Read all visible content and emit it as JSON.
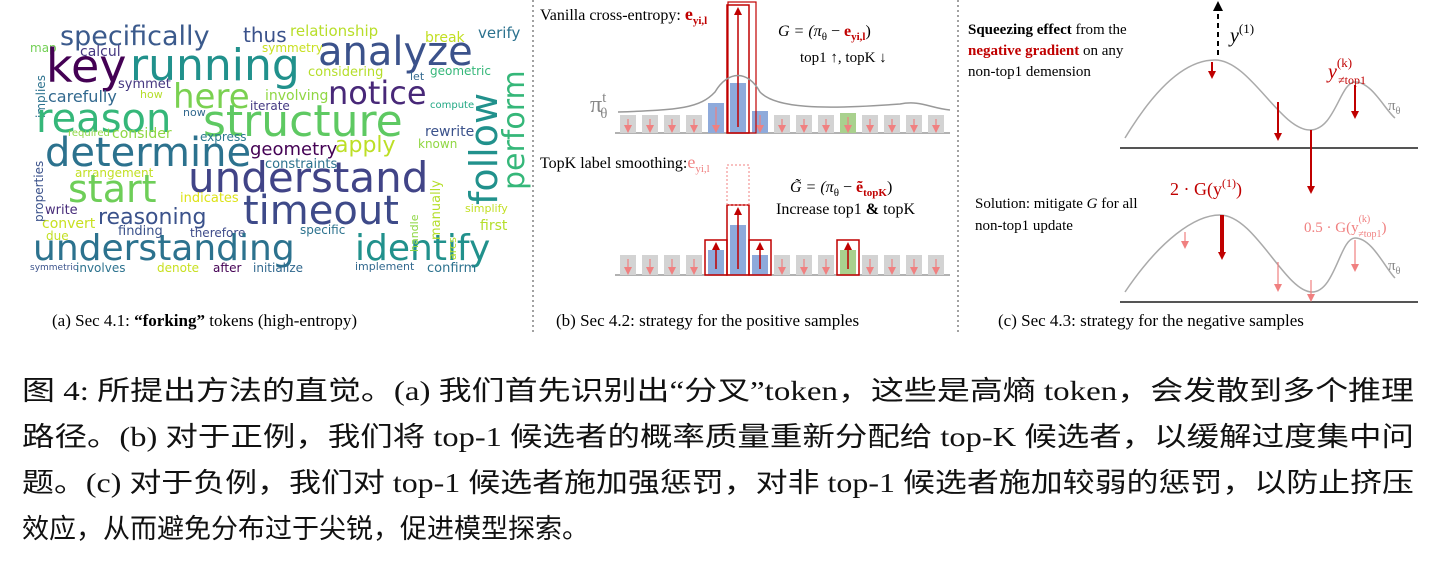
{
  "wordcloud": {
    "words": [
      "specifically",
      "thus",
      "relationship",
      "break",
      "verify",
      "map",
      "calcul",
      "symmetry",
      "key",
      "running",
      "analyze",
      "considering",
      "symmet",
      "let",
      "geometric",
      "carefully",
      "how",
      "involving",
      "here",
      "notice",
      "implies",
      "reason",
      "now",
      "iterate",
      "compute",
      "structure",
      "required",
      "consider",
      "express",
      "rewrite",
      "determine",
      "geometry",
      "apply",
      "known",
      "constraints",
      "properties",
      "understand",
      "arrangement",
      "start",
      "indicates",
      "write",
      "reasoning",
      "timeout",
      "convert",
      "specific",
      "simplify",
      "first",
      "due",
      "finding",
      "therefore",
      "understanding",
      "identify",
      "symmetric",
      "involves",
      "denote",
      "after",
      "initialize",
      "implement",
      "confirm",
      "follow",
      "perform",
      "manually",
      "handle",
      "arcs"
    ]
  },
  "panel_a": {
    "caption": [
      "(a) Sec 4.1:  ",
      "“forking”",
      " tokens (high-entropy)"
    ]
  },
  "panel_b": {
    "vanilla_label": [
      "Vanilla cross-entropy: ",
      "e",
      "yi,l"
    ],
    "formula_g": [
      "G = (π",
      "θ",
      " − ",
      "e",
      "yi,l",
      ")"
    ],
    "effect_top": "top1 ↑, topK ↓",
    "policy_label": [
      "π",
      "t",
      "θ"
    ],
    "smoothing_label": [
      "TopK label smoothing:",
      "e",
      "yi,l"
    ],
    "formula_g_tilde": [
      "G̃ = (π",
      "θ",
      " − ",
      "ẽ",
      "topK",
      ")"
    ],
    "effect_bottom": [
      "Increase top1 ",
      "&",
      " topK"
    ],
    "caption": "(b) Sec 4.2: strategy for the positive samples"
  },
  "panel_c": {
    "squeeze_line1": [
      "Squeezing effect",
      " from the"
    ],
    "squeeze_line2": [
      "negative gradient",
      " on any"
    ],
    "squeeze_line3": "non-top1 demension",
    "y_top1": [
      "y",
      "(1)"
    ],
    "y_nontop1": [
      "y",
      "(k)",
      "≠top1"
    ],
    "policy_top": [
      "π",
      "θ"
    ],
    "solution_line1": [
      "Solution: mitigate ",
      "G",
      " for all"
    ],
    "solution_line2": "non-top1 update",
    "strong_penalty": [
      "2 · G(y",
      "(1)",
      ")"
    ],
    "weak_penalty": [
      "0.5 · G(y",
      "(k)",
      "≠top1",
      ")"
    ],
    "policy_bottom": [
      "π",
      "θ"
    ],
    "caption": "(c) Sec 4.3: strategy for the negative samples"
  },
  "figure_caption": {
    "lines": [
      "图 4: 所提出方法的直觉。(a) 我们首先识别出“分叉”token，这些是高熵 token，会发散到多个推理",
      "路径。(b) 对于正例，我们将 top-1 候选者的概率质量重新分配给 top-K 候选者，以缓解过度集中问",
      "题。(c) 对于负例，我们对 top-1 候选者施加强惩罚，对非 top-1 候选者施加较弱的惩罚，以防止挤压",
      "效应，从而避免分布过于尖锐，促进模型探索。"
    ]
  }
}
